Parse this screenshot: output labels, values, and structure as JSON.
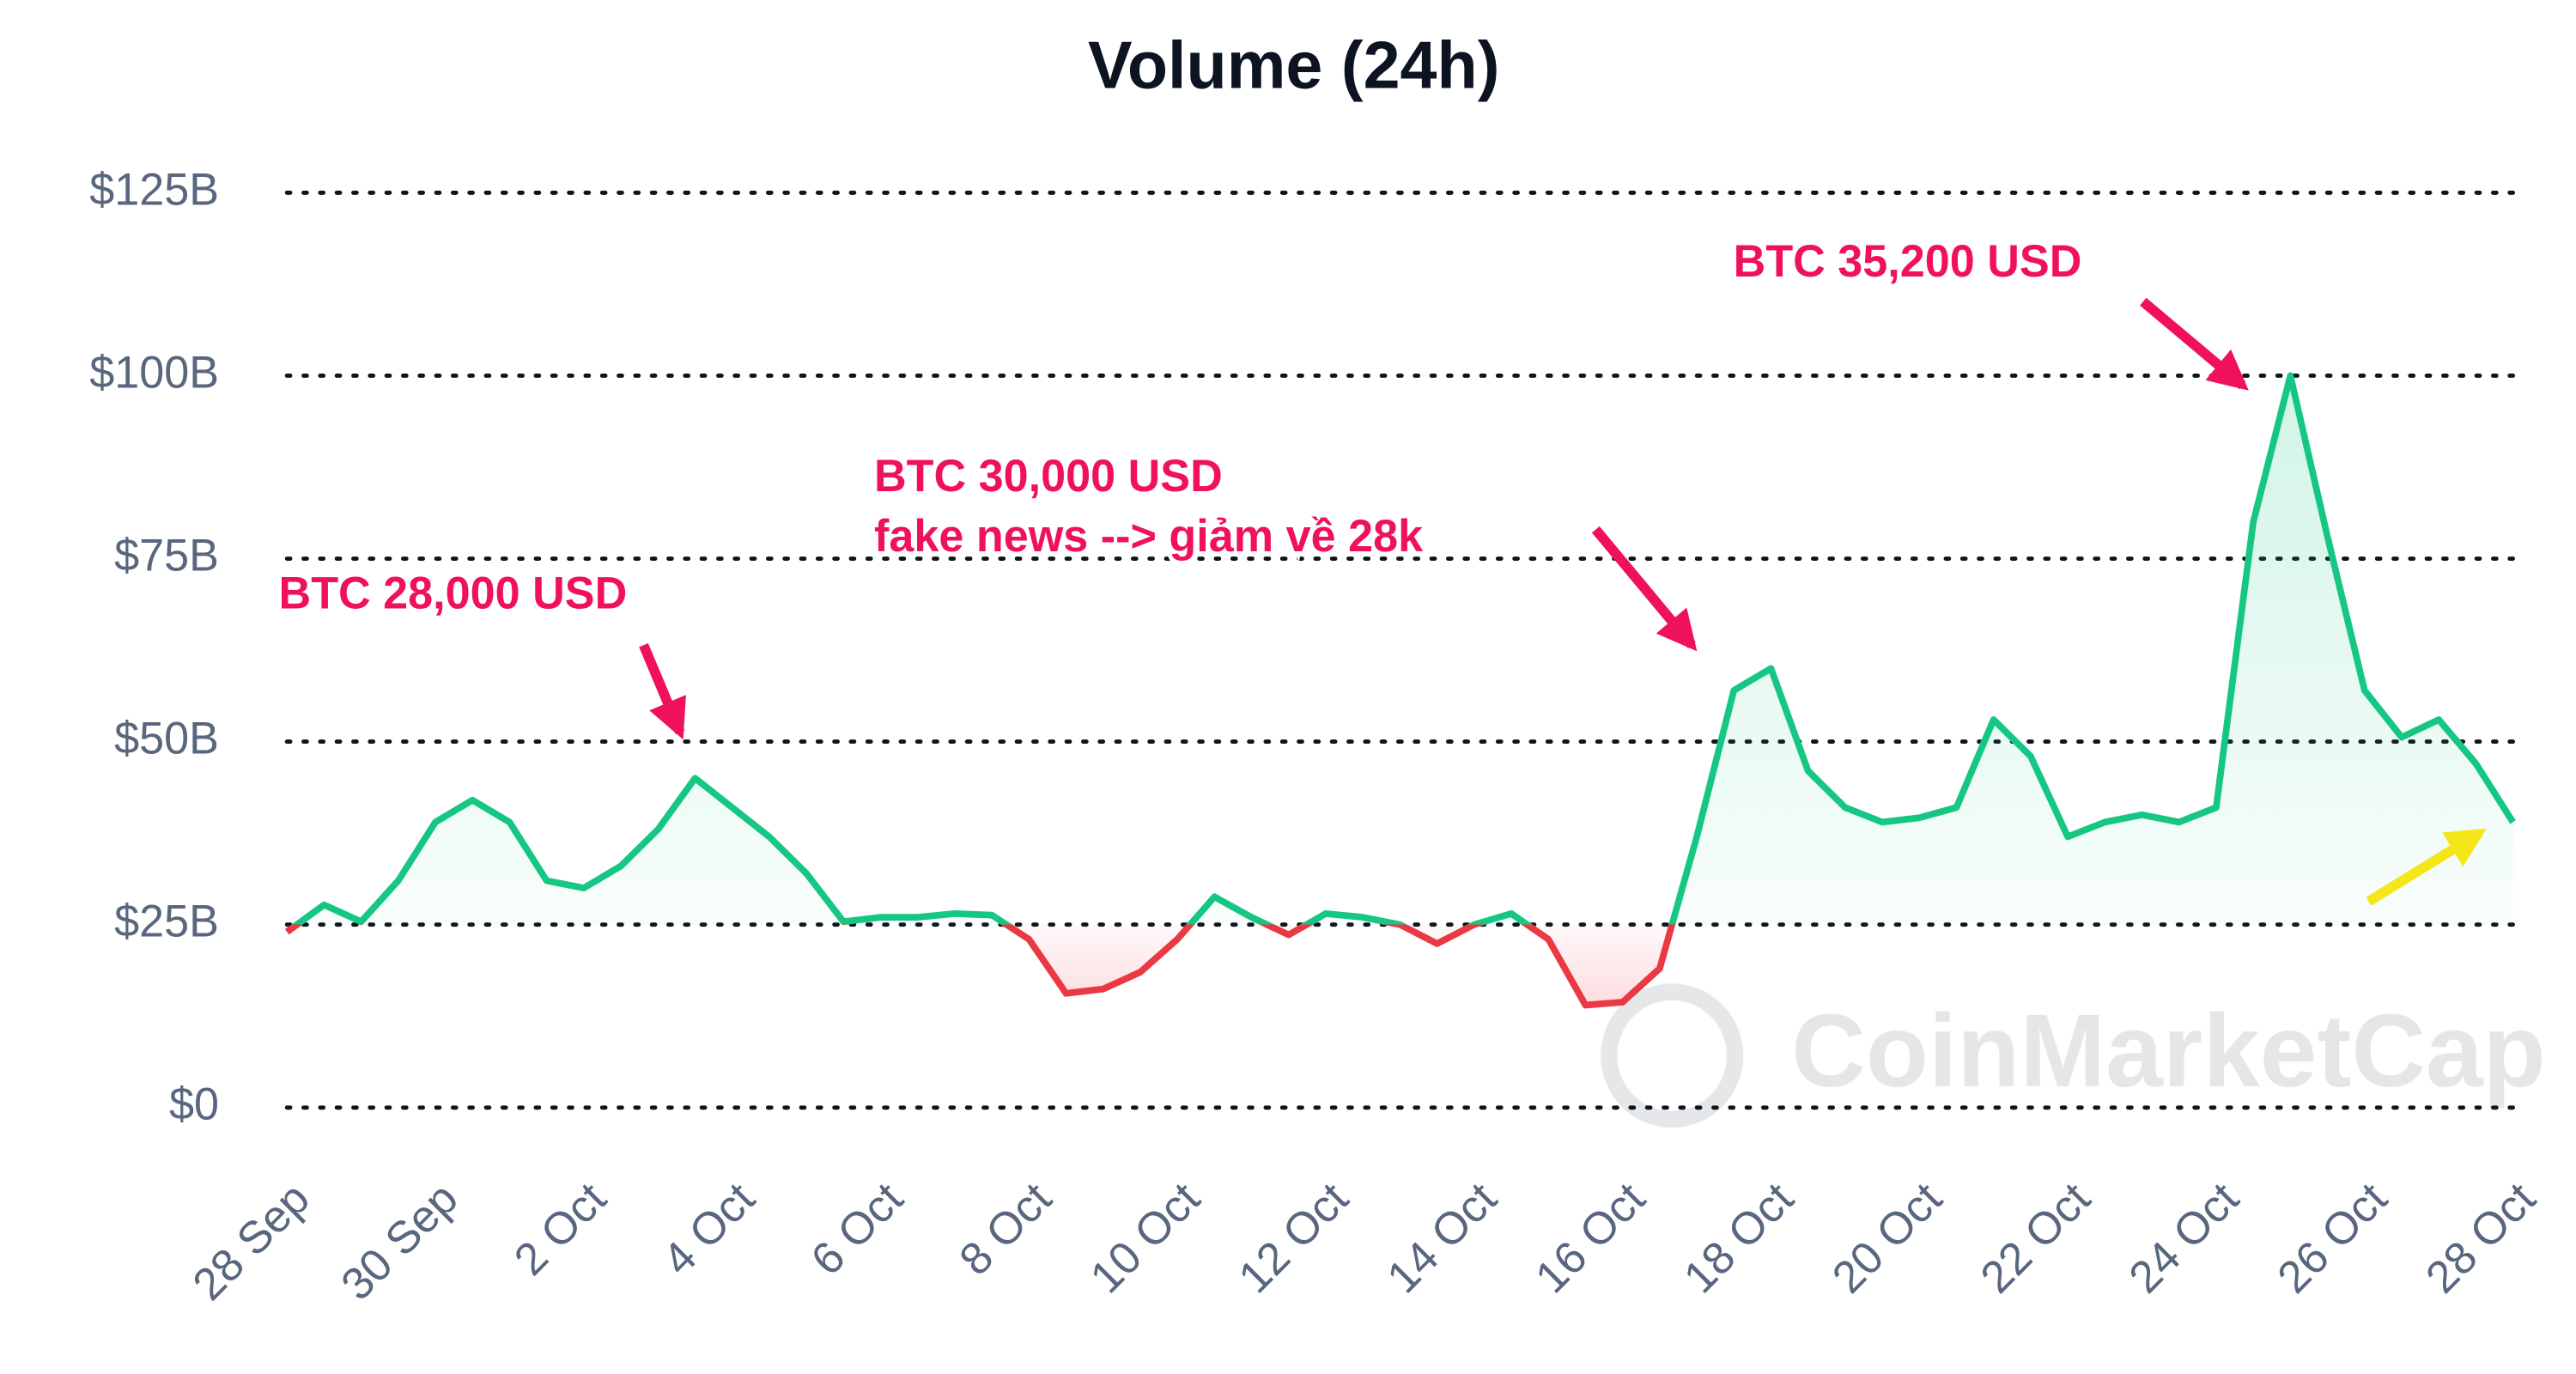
{
  "chart_data": {
    "type": "line",
    "title": "Volume (24h)",
    "x": [
      0,
      0.5,
      1,
      1.5,
      2,
      2.5,
      3,
      3.5,
      4,
      4.5,
      5,
      5.5,
      6,
      6.5,
      7,
      7.5,
      8,
      8.5,
      9,
      9.5,
      10,
      10.5,
      11,
      11.5,
      12,
      12.5,
      13,
      13.5,
      14,
      14.5,
      15,
      15.5,
      16,
      16.5,
      17,
      17.5,
      18,
      18.5,
      19,
      19.5,
      20,
      20.5,
      21,
      21.5,
      22,
      22.5,
      23,
      23.5,
      24,
      24.5,
      25,
      25.5,
      26,
      26.5,
      27,
      27.5,
      28,
      28.5,
      29,
      29.5,
      30
    ],
    "series": [
      {
        "name": "Volume (24h)",
        "color": "#16c784",
        "color_below": "#ea3943",
        "values": [
          24,
          27.7,
          25.4,
          31,
          39,
          42,
          39,
          31,
          30,
          33,
          38,
          45,
          41,
          37,
          32,
          25.4,
          26,
          26,
          26.5,
          26.3,
          23,
          15.6,
          16.2,
          18.5,
          23,
          28.8,
          26,
          23.6,
          26.5,
          26,
          25,
          22.4,
          25,
          26.5,
          23,
          14,
          14.4,
          19,
          37,
          57,
          60,
          46,
          41,
          39,
          39.6,
          41,
          53,
          48,
          37,
          39,
          40,
          39,
          41,
          80,
          100,
          78,
          57,
          50.6,
          53,
          47,
          39
        ]
      }
    ],
    "threshold": 25,
    "xlim": [
      0,
      30
    ],
    "xticks": [
      {
        "value": 0,
        "label": "28 Sep"
      },
      {
        "value": 2,
        "label": "30 Sep"
      },
      {
        "value": 4,
        "label": "2 Oct"
      },
      {
        "value": 6,
        "label": "4 Oct"
      },
      {
        "value": 8,
        "label": "6 Oct"
      },
      {
        "value": 10,
        "label": "8 Oct"
      },
      {
        "value": 12,
        "label": "10 Oct"
      },
      {
        "value": 14,
        "label": "12 Oct"
      },
      {
        "value": 16,
        "label": "14 Oct"
      },
      {
        "value": 18,
        "label": "16 Oct"
      },
      {
        "value": 20,
        "label": "18 Oct"
      },
      {
        "value": 22,
        "label": "20 Oct"
      },
      {
        "value": 24,
        "label": "22 Oct"
      },
      {
        "value": 26,
        "label": "24 Oct"
      },
      {
        "value": 28,
        "label": "26 Oct"
      },
      {
        "value": 30,
        "label": "28 Oct"
      }
    ],
    "ylim": [
      0,
      125
    ],
    "yticks": [
      {
        "value": 0,
        "label": "$0"
      },
      {
        "value": 25,
        "label": "$25B"
      },
      {
        "value": 50,
        "label": "$50B"
      },
      {
        "value": 75,
        "label": "$75B"
      },
      {
        "value": 100,
        "label": "$100B"
      },
      {
        "value": 125,
        "label": "$125B"
      }
    ],
    "grid": true,
    "annotations": [
      {
        "lines": [
          "BTC 28,000 USD"
        ]
      },
      {
        "lines": [
          "BTC 30,000 USD",
          "fake news --> giảm về 28k"
        ]
      },
      {
        "lines": [
          "BTC 35,200 USD"
        ]
      }
    ],
    "watermark": "CoinMarketCap"
  }
}
